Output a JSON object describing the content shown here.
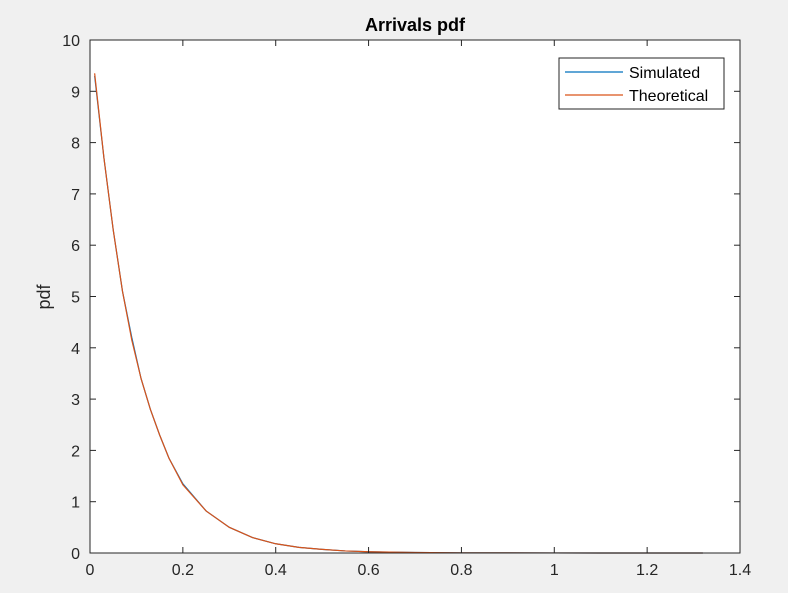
{
  "chart_data": {
    "type": "line",
    "title": "Arrivals pdf",
    "xlabel": "",
    "ylabel": "pdf",
    "xlim": [
      0,
      1.4
    ],
    "ylim": [
      0,
      10
    ],
    "xticks": [
      0,
      0.2,
      0.4,
      0.6,
      0.8,
      1,
      1.2,
      1.4
    ],
    "xtick_labels": [
      "0",
      "0.2",
      "0.4",
      "0.6",
      "0.8",
      "1",
      "1.2",
      "1.4"
    ],
    "yticks": [
      0,
      1,
      2,
      3,
      4,
      5,
      6,
      7,
      8,
      9,
      10
    ],
    "ytick_labels": [
      "0",
      "1",
      "2",
      "3",
      "4",
      "5",
      "6",
      "7",
      "8",
      "9",
      "10"
    ],
    "grid": false,
    "legend_position": "top-right",
    "series": [
      {
        "name": "Simulated",
        "color": "#0072BD",
        "x": [
          0.01,
          0.03,
          0.05,
          0.07,
          0.09,
          0.11,
          0.13,
          0.15,
          0.17,
          0.2,
          0.25,
          0.3,
          0.35,
          0.4,
          0.45,
          0.5,
          0.55,
          0.6,
          0.7,
          0.8,
          0.9,
          1.0,
          1.1,
          1.2,
          1.32
        ],
        "y": [
          9.3,
          7.7,
          6.3,
          5.1,
          4.2,
          3.4,
          2.8,
          2.3,
          1.85,
          1.35,
          0.82,
          0.5,
          0.3,
          0.18,
          0.11,
          0.07,
          0.04,
          0.025,
          0.01,
          0.004,
          0.002,
          0.001,
          0.0005,
          0.0002,
          0.0001
        ]
      },
      {
        "name": "Theoretical",
        "color": "#D95319",
        "x": [
          0.01,
          0.03,
          0.05,
          0.07,
          0.09,
          0.11,
          0.13,
          0.15,
          0.17,
          0.2,
          0.25,
          0.3,
          0.35,
          0.4,
          0.45,
          0.5,
          0.55,
          0.6,
          0.7,
          0.8,
          0.9,
          1.0,
          1.1,
          1.2,
          1.32
        ],
        "y": [
          9.35,
          7.7,
          6.3,
          5.1,
          4.15,
          3.4,
          2.8,
          2.3,
          1.85,
          1.33,
          0.82,
          0.5,
          0.3,
          0.18,
          0.11,
          0.07,
          0.04,
          0.025,
          0.01,
          0.004,
          0.002,
          0.001,
          0.0005,
          0.0002,
          0.0001
        ]
      }
    ]
  }
}
